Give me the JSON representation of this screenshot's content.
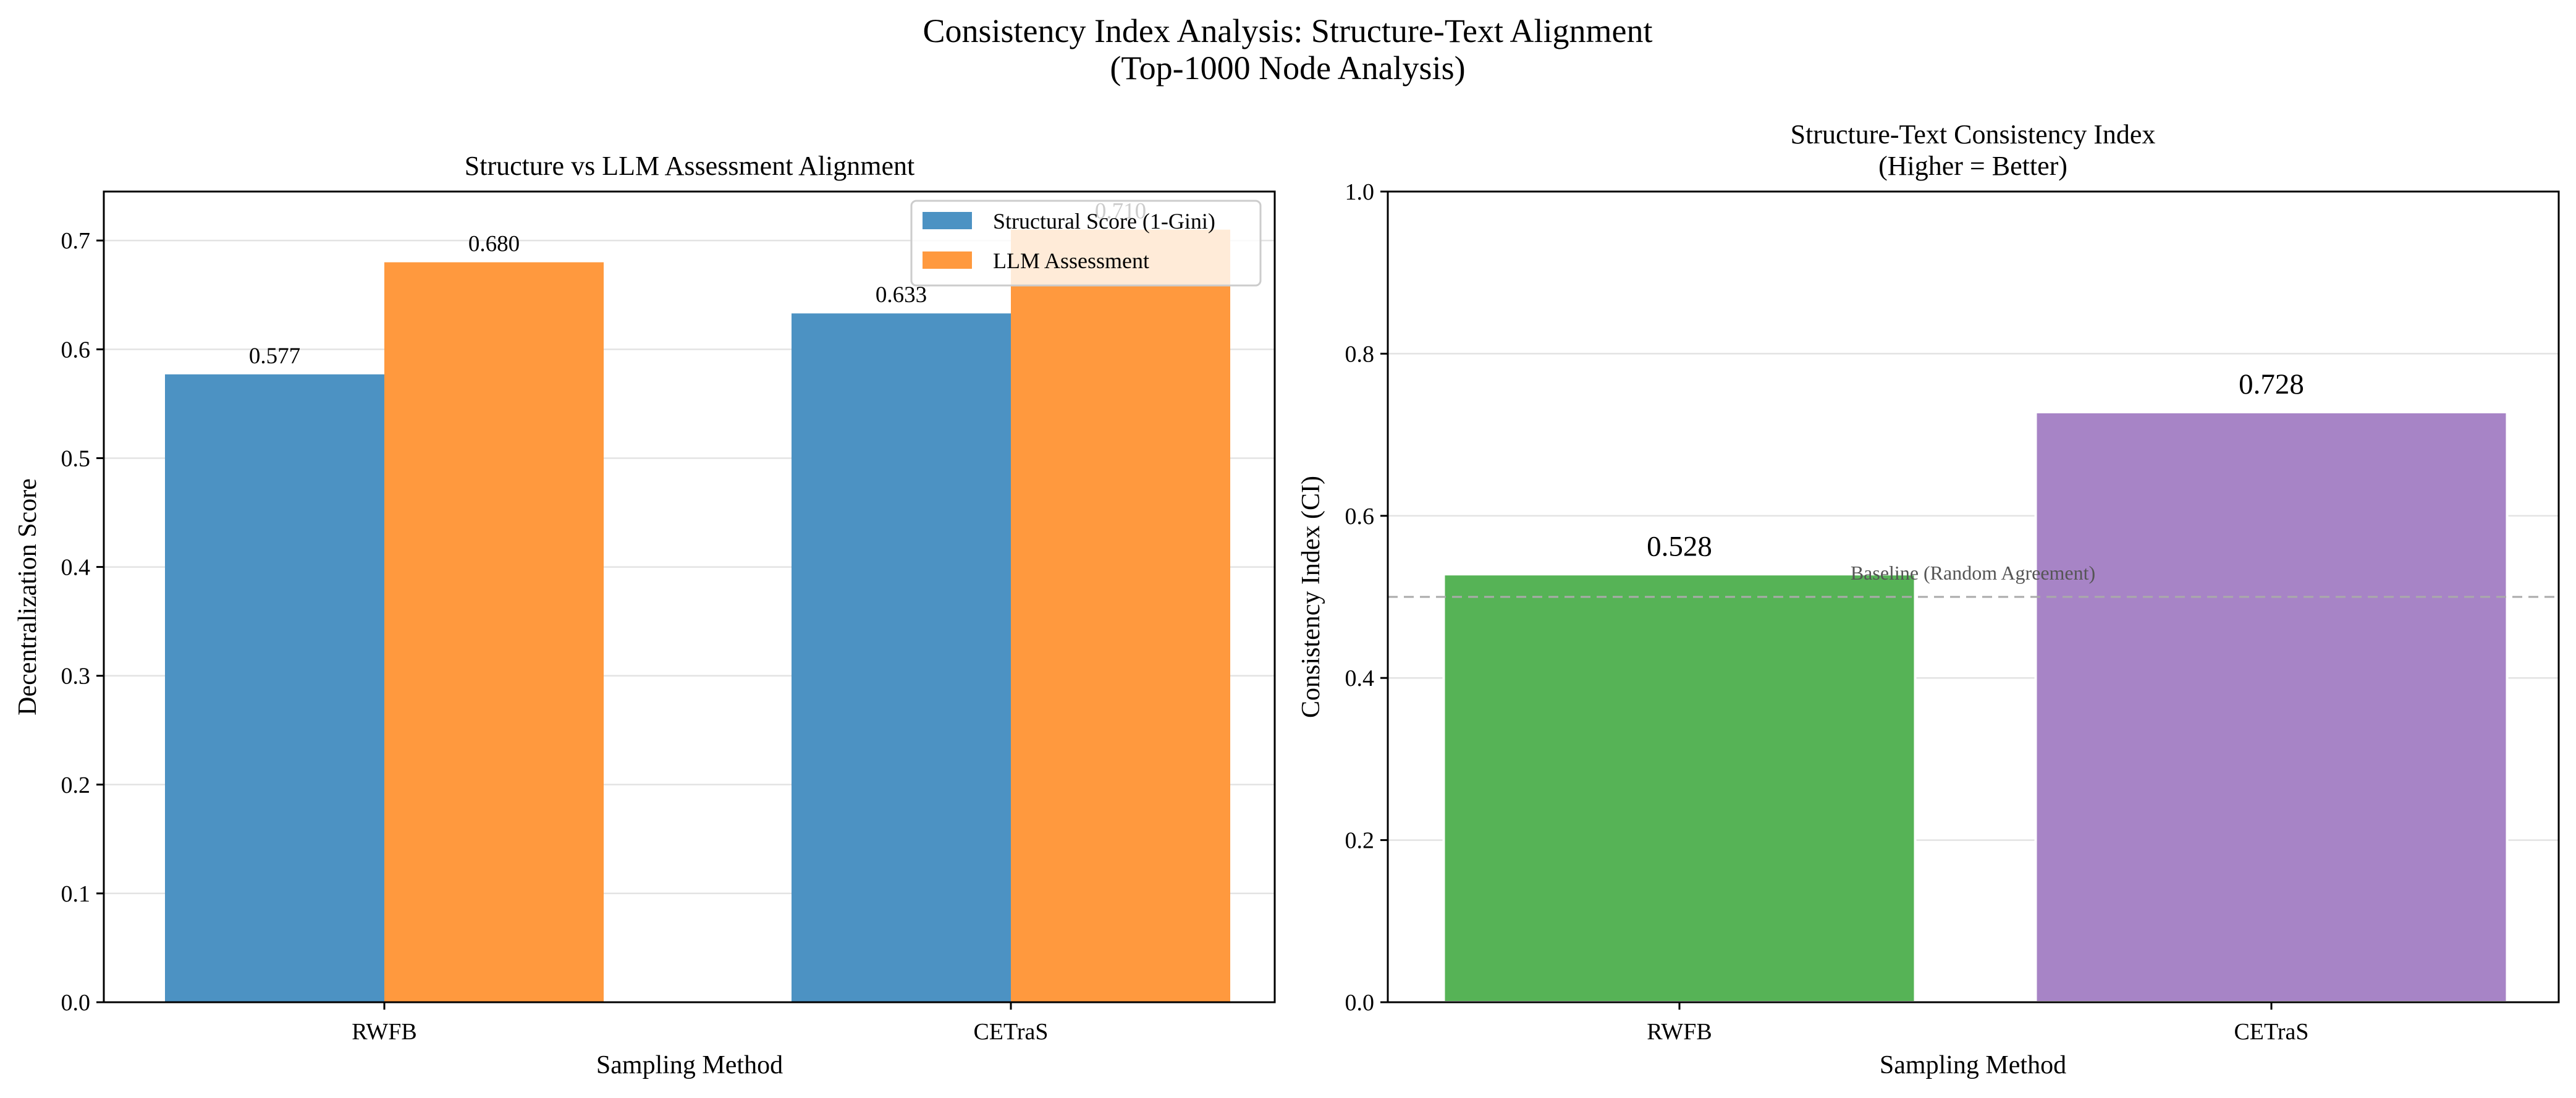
{
  "figure_title_line1": "Consistency Index Analysis: Structure-Text Alignment",
  "figure_title_line2": "(Top-1000 Node Analysis)",
  "chart_data": [
    {
      "type": "bar",
      "title": "Structure vs LLM Assessment Alignment",
      "xlabel": "Sampling Method",
      "ylabel": "Decentralization Score",
      "categories": [
        "RWFB",
        "CETraS"
      ],
      "series": [
        {
          "name": "Structural Score (1-Gini)",
          "values": [
            0.577,
            0.633
          ],
          "labels": [
            "0.577",
            "0.633"
          ],
          "color": "#4c92c3"
        },
        {
          "name": "LLM Assessment",
          "values": [
            0.68,
            0.71
          ],
          "labels": [
            "0.680",
            "0.710"
          ],
          "color": "#ff993e"
        }
      ],
      "ylim": [
        0,
        0.745
      ],
      "yticks": [
        "0.0",
        "0.1",
        "0.2",
        "0.3",
        "0.4",
        "0.5",
        "0.6",
        "0.7"
      ],
      "grid": "y",
      "legend": "top-right"
    },
    {
      "type": "bar",
      "title_line1": "Structure-Text Consistency Index",
      "title_line2": "(Higher = Better)",
      "xlabel": "Sampling Method",
      "ylabel": "Consistency Index (CI)",
      "categories": [
        "RWFB",
        "CETraS"
      ],
      "values": [
        0.528,
        0.728
      ],
      "labels": [
        "0.528",
        "0.728"
      ],
      "colors": [
        "#56b356",
        "#a784c6"
      ],
      "ylim": [
        0,
        1.0
      ],
      "yticks": [
        "0.0",
        "0.2",
        "0.4",
        "0.6",
        "0.8",
        "1.0"
      ],
      "grid": "y",
      "baseline": {
        "value": 0.5,
        "label": "Baseline (Random Agreement)",
        "color": "#aaaaaa"
      }
    }
  ]
}
